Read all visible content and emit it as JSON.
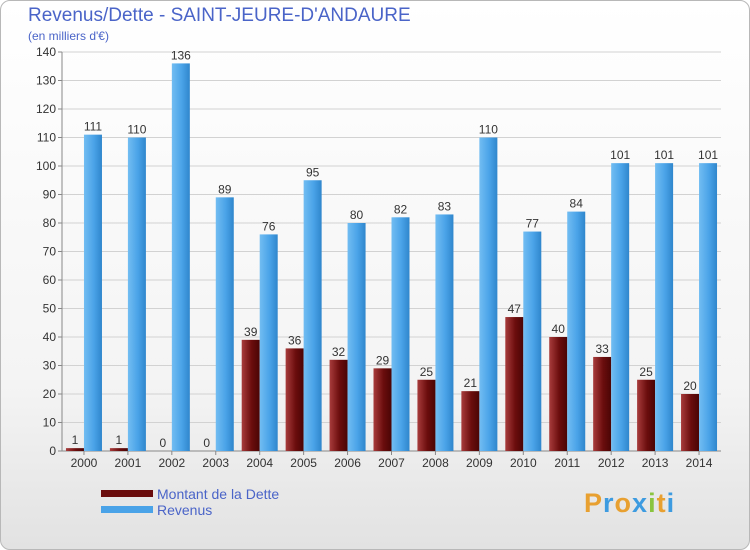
{
  "title": "Revenus/Dette - SAINT-JEURE-D'ANDAURE",
  "subtitle": "(en milliers d'€)",
  "chart_data": {
    "type": "bar",
    "categories": [
      "2000",
      "2001",
      "2002",
      "2003",
      "2004",
      "2005",
      "2006",
      "2007",
      "2008",
      "2009",
      "2010",
      "2011",
      "2012",
      "2013",
      "2014"
    ],
    "series": [
      {
        "name": "Montant de la Dette",
        "color": "#6b0d0d",
        "values": [
          1,
          1,
          0,
          0,
          39,
          36,
          32,
          29,
          25,
          21,
          47,
          40,
          33,
          25,
          20
        ]
      },
      {
        "name": "Revenus",
        "color": "#4aa3e8",
        "values": [
          111,
          110,
          136,
          89,
          76,
          95,
          80,
          82,
          83,
          110,
          77,
          84,
          101,
          101,
          101
        ]
      }
    ],
    "yticks": [
      0,
      10,
      20,
      30,
      40,
      50,
      60,
      70,
      80,
      90,
      100,
      110,
      120,
      130,
      140
    ],
    "ylim": [
      0,
      140
    ],
    "grid": true,
    "legend_position": "bottom-left"
  },
  "legend": [
    {
      "label": "Montant de la Dette",
      "color": "#6b0d0d"
    },
    {
      "label": "Revenus",
      "color": "#4aa3e8"
    }
  ],
  "logo": {
    "letters": [
      "P",
      "r",
      "o",
      "x",
      "i",
      "t",
      "i"
    ],
    "colors": [
      "#e8a030",
      "#3d9be0",
      "#e8a030",
      "#3d9be0",
      "#8ac43f",
      "#e8a030",
      "#3d9be0"
    ]
  }
}
